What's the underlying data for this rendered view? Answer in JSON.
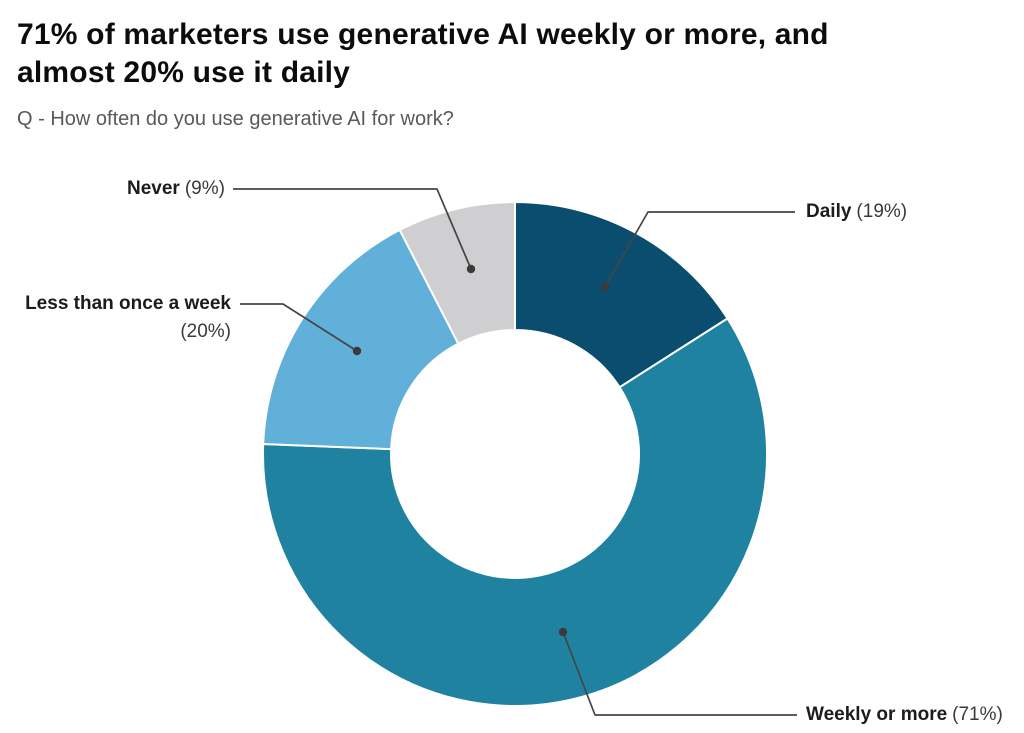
{
  "header": {
    "title": "71% of marketers use generative AI weekly or more, and almost 20% use it daily",
    "title_line1": "71% of marketers use generative AI weekly or more, and",
    "title_line2": "almost 20% use it daily",
    "subtitle": "Q - How often do you use generative AI for work?"
  },
  "colors": {
    "daily": "#0b4d6e",
    "weekly_or_more": "#1f82a1",
    "less_than_once_a_week": "#60b0da",
    "never": "#cfcfd1",
    "leader_line": "#454545",
    "slice_separator": "#ffffff",
    "title_text": "#0c0c0c",
    "subtitle_text": "#58595b"
  },
  "chart_data": {
    "type": "pie",
    "subtype": "donut",
    "title": "71% of marketers use generative AI weekly or more, and almost 20% use it daily",
    "question": "Q - How often do you use generative AI for work?",
    "start_angle_deg": 0,
    "direction": "clockwise",
    "labels_style": "external-callouts",
    "slice_angles_proportional_to_value_sum": true,
    "slices": [
      {
        "label": "Daily",
        "pct_label": "(19%)",
        "value": 19,
        "color": "#0b4d6e"
      },
      {
        "label": "Weekly or more",
        "pct_label": "(71%)",
        "value": 71,
        "color": "#1f82a1"
      },
      {
        "label": "Less than once a week",
        "pct_label": "(20%)",
        "value": 20,
        "color": "#60b0da"
      },
      {
        "label": "Never",
        "pct_label": "(9%)",
        "value": 9,
        "color": "#cfcfd1"
      }
    ]
  }
}
